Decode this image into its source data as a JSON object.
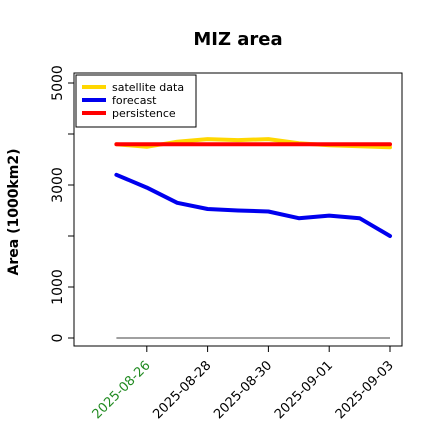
{
  "chart_data": {
    "type": "line",
    "title": "MIZ area",
    "ylabel": "Area (1000km2)",
    "xlabel": "",
    "x": [
      "2025-08-25",
      "2025-08-26",
      "2025-08-27",
      "2025-08-28",
      "2025-08-29",
      "2025-08-30",
      "2025-08-31",
      "2025-09-01",
      "2025-09-02",
      "2025-09-03"
    ],
    "x_ticks": [
      {
        "label": "2025-08-26",
        "highlight": true
      },
      {
        "label": "2025-08-28",
        "highlight": false
      },
      {
        "label": "2025-08-30",
        "highlight": false
      },
      {
        "label": "2025-09-01",
        "highlight": false
      },
      {
        "label": "2025-09-03",
        "highlight": false
      }
    ],
    "xlim": [
      "2025-08-24",
      "2025-09-03"
    ],
    "ylim": [
      0,
      5200
    ],
    "y_ticks": [
      0,
      1000,
      2000,
      3000,
      4000,
      5000
    ],
    "y_tick_labels": [
      "0",
      "1000",
      "",
      "3000",
      "",
      "5000"
    ],
    "series": [
      {
        "name": "satellite data",
        "color": "#FFD700",
        "values": [
          3800,
          3750,
          3850,
          3900,
          3880,
          3900,
          3820,
          3780,
          3760,
          3740
        ]
      },
      {
        "name": "forecast",
        "color": "#0000EE",
        "values": [
          3200,
          2950,
          2650,
          2530,
          2500,
          2480,
          2350,
          2400,
          2350,
          2000
        ]
      },
      {
        "name": "persistence",
        "color": "#FF0000",
        "values": [
          3800,
          3800,
          3800,
          3800,
          3800,
          3800,
          3800,
          3800,
          3800,
          3800
        ]
      }
    ],
    "reference_line": {
      "value": 0,
      "color": "#808080"
    },
    "legend_position": "top-left",
    "grid": false,
    "highlight_color": "#228B22"
  }
}
